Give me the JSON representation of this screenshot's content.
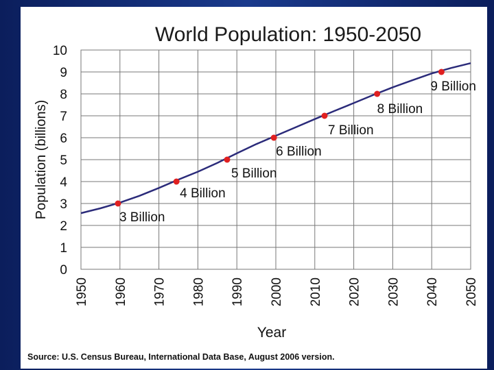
{
  "chart_data": {
    "type": "line",
    "title": "World Population: 1950-2050",
    "xlabel": "Year",
    "ylabel": "Population (billions)",
    "xlim": [
      1950,
      2050
    ],
    "ylim": [
      0,
      10
    ],
    "grid": true,
    "x_ticks": [
      "1950",
      "1960",
      "1970",
      "1980",
      "1990",
      "2000",
      "2010",
      "2020",
      "2030",
      "2040",
      "2050"
    ],
    "y_ticks": [
      "0",
      "1",
      "2",
      "3",
      "4",
      "5",
      "6",
      "7",
      "8",
      "9",
      "10"
    ],
    "series": [
      {
        "name": "World population",
        "x": [
          1950,
          1955,
          1960,
          1965,
          1970,
          1975,
          1980,
          1985,
          1990,
          1995,
          2000,
          2005,
          2010,
          2015,
          2020,
          2025,
          2030,
          2035,
          2040,
          2045,
          2050
        ],
        "y": [
          2.56,
          2.78,
          3.04,
          3.35,
          3.71,
          4.09,
          4.45,
          4.85,
          5.29,
          5.71,
          6.09,
          6.47,
          6.85,
          7.22,
          7.58,
          7.95,
          8.3,
          8.62,
          8.93,
          9.18,
          9.4
        ]
      }
    ],
    "milestones": [
      {
        "label": "3 Billion",
        "x": 1959.5,
        "y": 3
      },
      {
        "label": "4 Billion",
        "x": 1974.5,
        "y": 4
      },
      {
        "label": "5 Billion",
        "x": 1987.5,
        "y": 5
      },
      {
        "label": "6 Billion",
        "x": 1999.5,
        "y": 6
      },
      {
        "label": "7 Billion",
        "x": 2012.5,
        "y": 7
      },
      {
        "label": "8 Billion",
        "x": 2026,
        "y": 8
      },
      {
        "label": "9 Billion",
        "x": 2042.5,
        "y": 9
      }
    ]
  },
  "source": "Source: U.S. Census Bureau, International Data Base, August 2006 version."
}
